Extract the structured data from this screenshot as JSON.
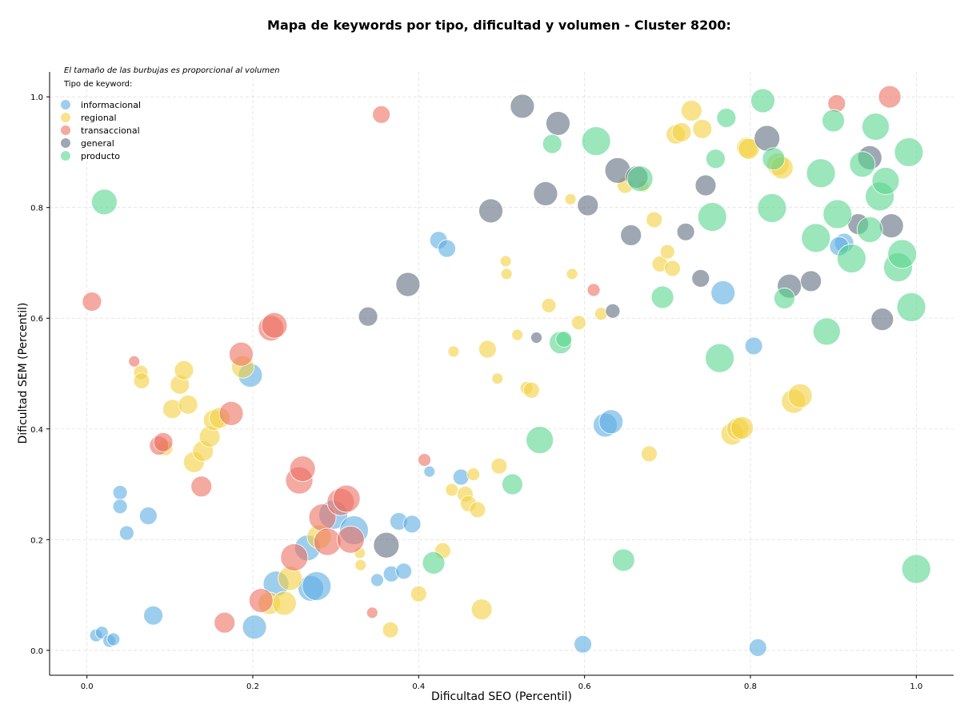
{
  "chart_data": {
    "type": "scatter",
    "title": "Mapa de keywords por tipo, dificultad y volumen - Cluster 8200:",
    "xlabel": "Dificultad SEO (Percentil)",
    "ylabel": "Dificultad SEM (Percentil)",
    "xlim": [
      -0.045,
      1.045
    ],
    "ylim": [
      -0.045,
      1.045
    ],
    "xticks": [
      "0.0",
      "0.2",
      "0.4",
      "0.6",
      "0.8",
      "1.0"
    ],
    "yticks": [
      "0.0",
      "0.2",
      "0.4",
      "0.6",
      "0.8",
      "1.0"
    ],
    "grid": true,
    "legend_note": "El tamaño de las burbujas es proporcional al volumen",
    "legend_title": "Tipo de keyword:",
    "legend_position": "top-left",
    "series": [
      {
        "name": "informacional",
        "color": "#5DADE2",
        "points": [
          [
            0.011,
            0.027,
            0.8
          ],
          [
            0.018,
            0.032,
            0.8
          ],
          [
            0.027,
            0.017,
            0.8
          ],
          [
            0.032,
            0.02,
            0.8
          ],
          [
            0.04,
            0.285,
            0.9
          ],
          [
            0.04,
            0.26,
            0.9
          ],
          [
            0.048,
            0.212,
            0.9
          ],
          [
            0.074,
            0.243,
            1.1
          ],
          [
            0.08,
            0.063,
            1.2
          ],
          [
            0.197,
            0.497,
            1.5
          ],
          [
            0.202,
            0.042,
            1.5
          ],
          [
            0.228,
            0.12,
            1.6
          ],
          [
            0.266,
            0.185,
            1.6
          ],
          [
            0.27,
            0.112,
            1.6
          ],
          [
            0.277,
            0.116,
            1.8
          ],
          [
            0.297,
            0.245,
            1.8
          ],
          [
            0.322,
            0.217,
            1.8
          ],
          [
            0.35,
            0.127,
            0.8
          ],
          [
            0.367,
            0.138,
            1.0
          ],
          [
            0.376,
            0.233,
            1.1
          ],
          [
            0.382,
            0.143,
            1.0
          ],
          [
            0.392,
            0.228,
            1.1
          ],
          [
            0.413,
            0.323,
            0.7
          ],
          [
            0.424,
            0.741,
            1.1
          ],
          [
            0.434,
            0.726,
            1.1
          ],
          [
            0.451,
            0.313,
            1.0
          ],
          [
            0.598,
            0.011,
            1.1
          ],
          [
            0.625,
            0.407,
            1.5
          ],
          [
            0.632,
            0.413,
            1.5
          ],
          [
            0.767,
            0.646,
            1.5
          ],
          [
            0.804,
            0.55,
            1.1
          ],
          [
            0.809,
            0.005,
            1.1
          ],
          [
            0.913,
            0.736,
            1.2
          ],
          [
            0.907,
            0.73,
            1.2
          ]
        ]
      },
      {
        "name": "regional",
        "color": "#F4D03F",
        "points": [
          [
            0.065,
            0.502,
            0.9
          ],
          [
            0.066,
            0.487,
            1.0
          ],
          [
            0.094,
            0.366,
            1.0
          ],
          [
            0.103,
            0.436,
            1.2
          ],
          [
            0.112,
            0.48,
            1.2
          ],
          [
            0.117,
            0.506,
            1.2
          ],
          [
            0.122,
            0.444,
            1.2
          ],
          [
            0.129,
            0.34,
            1.3
          ],
          [
            0.14,
            0.36,
            1.3
          ],
          [
            0.148,
            0.386,
            1.3
          ],
          [
            0.153,
            0.416,
            1.3
          ],
          [
            0.16,
            0.42,
            1.3
          ],
          [
            0.188,
            0.512,
            1.4
          ],
          [
            0.22,
            0.085,
            1.4
          ],
          [
            0.238,
            0.085,
            1.5
          ],
          [
            0.245,
            0.13,
            1.5
          ],
          [
            0.28,
            0.205,
            1.5
          ],
          [
            0.329,
            0.176,
            0.7
          ],
          [
            0.33,
            0.154,
            0.7
          ],
          [
            0.366,
            0.037,
            1.0
          ],
          [
            0.4,
            0.102,
            1.0
          ],
          [
            0.429,
            0.18,
            1.0
          ],
          [
            0.44,
            0.29,
            0.8
          ],
          [
            0.442,
            0.54,
            0.7
          ],
          [
            0.456,
            0.282,
            1.0
          ],
          [
            0.46,
            0.265,
            1.0
          ],
          [
            0.466,
            0.318,
            0.8
          ],
          [
            0.471,
            0.254,
            1.0
          ],
          [
            0.476,
            0.074,
            1.3
          ],
          [
            0.483,
            0.544,
            1.1
          ],
          [
            0.495,
            0.491,
            0.7
          ],
          [
            0.497,
            0.333,
            1.0
          ],
          [
            0.505,
            0.703,
            0.7
          ],
          [
            0.506,
            0.68,
            0.7
          ],
          [
            0.519,
            0.57,
            0.7
          ],
          [
            0.53,
            0.474,
            0.8
          ],
          [
            0.536,
            0.47,
            1.0
          ],
          [
            0.557,
            0.623,
            0.9
          ],
          [
            0.583,
            0.815,
            0.7
          ],
          [
            0.585,
            0.68,
            0.7
          ],
          [
            0.593,
            0.592,
            0.9
          ],
          [
            0.62,
            0.608,
            0.8
          ],
          [
            0.649,
            0.84,
            1.0
          ],
          [
            0.671,
            0.838,
            0.7
          ],
          [
            0.678,
            0.355,
            1.0
          ],
          [
            0.684,
            0.778,
            1.0
          ],
          [
            0.691,
            0.698,
            1.0
          ],
          [
            0.7,
            0.72,
            0.9
          ],
          [
            0.706,
            0.69,
            1.0
          ],
          [
            0.71,
            0.932,
            1.2
          ],
          [
            0.717,
            0.936,
            1.2
          ],
          [
            0.729,
            0.975,
            1.3
          ],
          [
            0.742,
            0.942,
            1.2
          ],
          [
            0.778,
            0.391,
            1.4
          ],
          [
            0.785,
            0.4,
            1.4
          ],
          [
            0.79,
            0.402,
            1.4
          ],
          [
            0.796,
            0.908,
            1.3
          ],
          [
            0.798,
            0.906,
            1.3
          ],
          [
            0.833,
            0.878,
            1.4
          ],
          [
            0.838,
            0.872,
            1.4
          ],
          [
            0.852,
            0.45,
            1.5
          ],
          [
            0.86,
            0.46,
            1.5
          ]
        ]
      },
      {
        "name": "transaccional",
        "color": "#EC7063",
        "points": [
          [
            0.006,
            0.63,
            1.2
          ],
          [
            0.057,
            0.522,
            0.7
          ],
          [
            0.087,
            0.37,
            1.2
          ],
          [
            0.092,
            0.376,
            1.2
          ],
          [
            0.138,
            0.296,
            1.3
          ],
          [
            0.166,
            0.05,
            1.3
          ],
          [
            0.174,
            0.428,
            1.5
          ],
          [
            0.186,
            0.535,
            1.5
          ],
          [
            0.21,
            0.09,
            1.5
          ],
          [
            0.222,
            0.582,
            1.6
          ],
          [
            0.226,
            0.587,
            1.6
          ],
          [
            0.256,
            0.307,
            1.7
          ],
          [
            0.26,
            0.328,
            1.6
          ],
          [
            0.25,
            0.168,
            1.7
          ],
          [
            0.284,
            0.24,
            1.7
          ],
          [
            0.29,
            0.196,
            1.7
          ],
          [
            0.306,
            0.268,
            1.7
          ],
          [
            0.313,
            0.274,
            1.7
          ],
          [
            0.318,
            0.2,
            1.7
          ],
          [
            0.344,
            0.068,
            0.7
          ],
          [
            0.355,
            0.968,
            1.1
          ],
          [
            0.407,
            0.344,
            0.8
          ],
          [
            0.611,
            0.651,
            0.8
          ],
          [
            0.904,
            0.988,
            1.1
          ],
          [
            0.968,
            1.0,
            1.4
          ]
        ]
      },
      {
        "name": "general",
        "color": "#5D6D7E",
        "points": [
          [
            0.339,
            0.603,
            1.2
          ],
          [
            0.361,
            0.19,
            1.6
          ],
          [
            0.387,
            0.661,
            1.5
          ],
          [
            0.487,
            0.794,
            1.5
          ],
          [
            0.525,
            0.983,
            1.5
          ],
          [
            0.542,
            0.565,
            0.7
          ],
          [
            0.553,
            0.825,
            1.5
          ],
          [
            0.568,
            0.952,
            1.5
          ],
          [
            0.604,
            0.804,
            1.3
          ],
          [
            0.634,
            0.613,
            0.9
          ],
          [
            0.64,
            0.867,
            1.6
          ],
          [
            0.656,
            0.75,
            1.3
          ],
          [
            0.663,
            0.855,
            1.4
          ],
          [
            0.722,
            0.756,
            1.1
          ],
          [
            0.74,
            0.672,
            1.1
          ],
          [
            0.746,
            0.84,
            1.3
          ],
          [
            0.82,
            0.925,
            1.6
          ],
          [
            0.847,
            0.658,
            1.5
          ],
          [
            0.873,
            0.667,
            1.3
          ],
          [
            0.93,
            0.77,
            1.3
          ],
          [
            0.944,
            0.89,
            1.5
          ],
          [
            0.959,
            0.598,
            1.4
          ],
          [
            0.97,
            0.767,
            1.5
          ]
        ]
      },
      {
        "name": "producto",
        "color": "#58D68D",
        "points": [
          [
            0.021,
            0.81,
            1.6
          ],
          [
            0.418,
            0.158,
            1.4
          ],
          [
            0.513,
            0.3,
            1.3
          ],
          [
            0.546,
            0.38,
            1.7
          ],
          [
            0.561,
            0.915,
            1.2
          ],
          [
            0.571,
            0.556,
            1.4
          ],
          [
            0.575,
            0.562,
            1.0
          ],
          [
            0.614,
            0.92,
            1.8
          ],
          [
            0.647,
            0.163,
            1.4
          ],
          [
            0.667,
            0.852,
            1.6
          ],
          [
            0.694,
            0.638,
            1.4
          ],
          [
            0.754,
            0.783,
            1.8
          ],
          [
            0.758,
            0.888,
            1.2
          ],
          [
            0.763,
            0.528,
            1.8
          ],
          [
            0.771,
            0.962,
            1.2
          ],
          [
            0.815,
            0.993,
            1.5
          ],
          [
            0.826,
            0.799,
            1.8
          ],
          [
            0.828,
            0.888,
            1.4
          ],
          [
            0.841,
            0.636,
            1.3
          ],
          [
            0.879,
            0.745,
            1.8
          ],
          [
            0.885,
            0.862,
            1.8
          ],
          [
            0.892,
            0.576,
            1.7
          ],
          [
            0.9,
            0.957,
            1.4
          ],
          [
            0.905,
            0.788,
            1.8
          ],
          [
            0.922,
            0.708,
            1.8
          ],
          [
            0.935,
            0.878,
            1.6
          ],
          [
            0.944,
            0.76,
            1.6
          ],
          [
            0.951,
            0.946,
            1.7
          ],
          [
            0.956,
            0.82,
            1.8
          ],
          [
            0.963,
            0.848,
            1.7
          ],
          [
            0.978,
            0.692,
            1.8
          ],
          [
            0.983,
            0.716,
            1.8
          ],
          [
            0.991,
            0.9,
            1.8
          ],
          [
            0.994,
            0.62,
            1.8
          ],
          [
            1.0,
            0.147,
            1.8
          ]
        ]
      }
    ]
  }
}
